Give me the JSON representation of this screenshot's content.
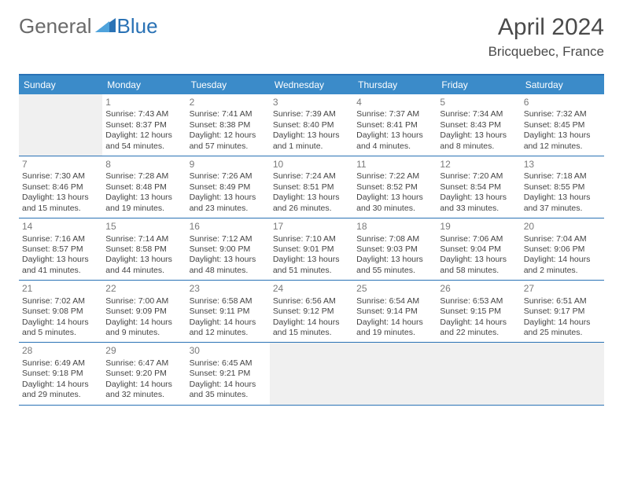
{
  "brand": {
    "general": "General",
    "blue": "Blue"
  },
  "title": "April 2024",
  "location": "Bricquebec, France",
  "colors": {
    "header_bg": "#3b8bc9",
    "header_text": "#ffffff",
    "border": "#2a72b5",
    "daynum": "#7a7a7a",
    "body_text": "#444444",
    "empty_bg": "#f0f0f0",
    "brand_grey": "#6a6a6a",
    "brand_blue": "#2a72b5"
  },
  "day_headers": [
    "Sunday",
    "Monday",
    "Tuesday",
    "Wednesday",
    "Thursday",
    "Friday",
    "Saturday"
  ],
  "leading_blanks": 1,
  "trailing_blanks": 4,
  "days": [
    {
      "n": "1",
      "sunrise": "Sunrise: 7:43 AM",
      "sunset": "Sunset: 8:37 PM",
      "d1": "Daylight: 12 hours",
      "d2": "and 54 minutes."
    },
    {
      "n": "2",
      "sunrise": "Sunrise: 7:41 AM",
      "sunset": "Sunset: 8:38 PM",
      "d1": "Daylight: 12 hours",
      "d2": "and 57 minutes."
    },
    {
      "n": "3",
      "sunrise": "Sunrise: 7:39 AM",
      "sunset": "Sunset: 8:40 PM",
      "d1": "Daylight: 13 hours",
      "d2": "and 1 minute."
    },
    {
      "n": "4",
      "sunrise": "Sunrise: 7:37 AM",
      "sunset": "Sunset: 8:41 PM",
      "d1": "Daylight: 13 hours",
      "d2": "and 4 minutes."
    },
    {
      "n": "5",
      "sunrise": "Sunrise: 7:34 AM",
      "sunset": "Sunset: 8:43 PM",
      "d1": "Daylight: 13 hours",
      "d2": "and 8 minutes."
    },
    {
      "n": "6",
      "sunrise": "Sunrise: 7:32 AM",
      "sunset": "Sunset: 8:45 PM",
      "d1": "Daylight: 13 hours",
      "d2": "and 12 minutes."
    },
    {
      "n": "7",
      "sunrise": "Sunrise: 7:30 AM",
      "sunset": "Sunset: 8:46 PM",
      "d1": "Daylight: 13 hours",
      "d2": "and 15 minutes."
    },
    {
      "n": "8",
      "sunrise": "Sunrise: 7:28 AM",
      "sunset": "Sunset: 8:48 PM",
      "d1": "Daylight: 13 hours",
      "d2": "and 19 minutes."
    },
    {
      "n": "9",
      "sunrise": "Sunrise: 7:26 AM",
      "sunset": "Sunset: 8:49 PM",
      "d1": "Daylight: 13 hours",
      "d2": "and 23 minutes."
    },
    {
      "n": "10",
      "sunrise": "Sunrise: 7:24 AM",
      "sunset": "Sunset: 8:51 PM",
      "d1": "Daylight: 13 hours",
      "d2": "and 26 minutes."
    },
    {
      "n": "11",
      "sunrise": "Sunrise: 7:22 AM",
      "sunset": "Sunset: 8:52 PM",
      "d1": "Daylight: 13 hours",
      "d2": "and 30 minutes."
    },
    {
      "n": "12",
      "sunrise": "Sunrise: 7:20 AM",
      "sunset": "Sunset: 8:54 PM",
      "d1": "Daylight: 13 hours",
      "d2": "and 33 minutes."
    },
    {
      "n": "13",
      "sunrise": "Sunrise: 7:18 AM",
      "sunset": "Sunset: 8:55 PM",
      "d1": "Daylight: 13 hours",
      "d2": "and 37 minutes."
    },
    {
      "n": "14",
      "sunrise": "Sunrise: 7:16 AM",
      "sunset": "Sunset: 8:57 PM",
      "d1": "Daylight: 13 hours",
      "d2": "and 41 minutes."
    },
    {
      "n": "15",
      "sunrise": "Sunrise: 7:14 AM",
      "sunset": "Sunset: 8:58 PM",
      "d1": "Daylight: 13 hours",
      "d2": "and 44 minutes."
    },
    {
      "n": "16",
      "sunrise": "Sunrise: 7:12 AM",
      "sunset": "Sunset: 9:00 PM",
      "d1": "Daylight: 13 hours",
      "d2": "and 48 minutes."
    },
    {
      "n": "17",
      "sunrise": "Sunrise: 7:10 AM",
      "sunset": "Sunset: 9:01 PM",
      "d1": "Daylight: 13 hours",
      "d2": "and 51 minutes."
    },
    {
      "n": "18",
      "sunrise": "Sunrise: 7:08 AM",
      "sunset": "Sunset: 9:03 PM",
      "d1": "Daylight: 13 hours",
      "d2": "and 55 minutes."
    },
    {
      "n": "19",
      "sunrise": "Sunrise: 7:06 AM",
      "sunset": "Sunset: 9:04 PM",
      "d1": "Daylight: 13 hours",
      "d2": "and 58 minutes."
    },
    {
      "n": "20",
      "sunrise": "Sunrise: 7:04 AM",
      "sunset": "Sunset: 9:06 PM",
      "d1": "Daylight: 14 hours",
      "d2": "and 2 minutes."
    },
    {
      "n": "21",
      "sunrise": "Sunrise: 7:02 AM",
      "sunset": "Sunset: 9:08 PM",
      "d1": "Daylight: 14 hours",
      "d2": "and 5 minutes."
    },
    {
      "n": "22",
      "sunrise": "Sunrise: 7:00 AM",
      "sunset": "Sunset: 9:09 PM",
      "d1": "Daylight: 14 hours",
      "d2": "and 9 minutes."
    },
    {
      "n": "23",
      "sunrise": "Sunrise: 6:58 AM",
      "sunset": "Sunset: 9:11 PM",
      "d1": "Daylight: 14 hours",
      "d2": "and 12 minutes."
    },
    {
      "n": "24",
      "sunrise": "Sunrise: 6:56 AM",
      "sunset": "Sunset: 9:12 PM",
      "d1": "Daylight: 14 hours",
      "d2": "and 15 minutes."
    },
    {
      "n": "25",
      "sunrise": "Sunrise: 6:54 AM",
      "sunset": "Sunset: 9:14 PM",
      "d1": "Daylight: 14 hours",
      "d2": "and 19 minutes."
    },
    {
      "n": "26",
      "sunrise": "Sunrise: 6:53 AM",
      "sunset": "Sunset: 9:15 PM",
      "d1": "Daylight: 14 hours",
      "d2": "and 22 minutes."
    },
    {
      "n": "27",
      "sunrise": "Sunrise: 6:51 AM",
      "sunset": "Sunset: 9:17 PM",
      "d1": "Daylight: 14 hours",
      "d2": "and 25 minutes."
    },
    {
      "n": "28",
      "sunrise": "Sunrise: 6:49 AM",
      "sunset": "Sunset: 9:18 PM",
      "d1": "Daylight: 14 hours",
      "d2": "and 29 minutes."
    },
    {
      "n": "29",
      "sunrise": "Sunrise: 6:47 AM",
      "sunset": "Sunset: 9:20 PM",
      "d1": "Daylight: 14 hours",
      "d2": "and 32 minutes."
    },
    {
      "n": "30",
      "sunrise": "Sunrise: 6:45 AM",
      "sunset": "Sunset: 9:21 PM",
      "d1": "Daylight: 14 hours",
      "d2": "and 35 minutes."
    }
  ]
}
